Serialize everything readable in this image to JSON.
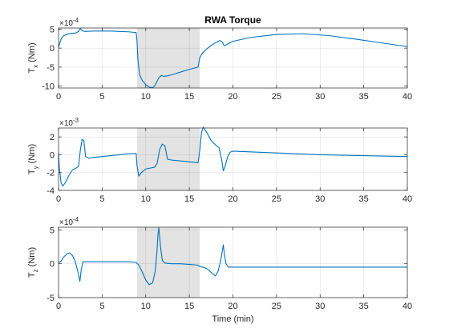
{
  "figure": {
    "background": "#ffffff",
    "line_color": "#0072bd",
    "shade_color": "#e3e3e3"
  },
  "chart_data": [
    {
      "type": "line",
      "title": "RWA Torque",
      "xlabel": "",
      "ylabel": "T",
      "ylabel_sub": "x",
      "ylabel_unit": " (Nm)",
      "multiplier": "×10",
      "exponent": "-4",
      "xlim": [
        0,
        40
      ],
      "ylim": [
        -10.5,
        5.3
      ],
      "xticks": [
        0,
        5,
        10,
        15,
        20,
        25,
        30,
        35,
        40
      ],
      "yticks": [
        -10,
        -5,
        0,
        5
      ],
      "grid": true,
      "shaded_region": [
        9,
        16.2
      ],
      "series": [
        {
          "x": [
            0,
            0.3,
            0.6,
            1.0,
            1.5,
            2.0,
            2.3,
            2.5,
            2.7,
            3.0,
            4.0,
            5.0,
            6.0,
            7.0,
            8.0,
            8.9,
            9.0,
            9.1,
            9.3,
            9.6,
            10.0,
            10.4,
            10.8,
            11.0,
            11.2,
            11.5,
            11.8,
            12.0,
            12.5,
            13.0,
            14.0,
            15.0,
            16.0,
            16.2,
            16.5,
            17.0,
            17.5,
            18.0,
            18.5,
            18.8,
            19.0,
            19.5,
            20.0,
            22.0,
            25.0,
            28.0,
            31.0,
            34.0,
            37.0,
            40.0
          ],
          "y": [
            0.2,
            2.5,
            3.3,
            3.7,
            3.9,
            4.0,
            4.4,
            5.2,
            4.6,
            4.4,
            4.5,
            4.5,
            4.5,
            4.4,
            4.3,
            4.1,
            2.0,
            -3.0,
            -7.0,
            -8.5,
            -9.6,
            -10.3,
            -10.4,
            -10.0,
            -9.2,
            -7.8,
            -7.2,
            -7.4,
            -7.3,
            -7.0,
            -6.3,
            -5.6,
            -5.0,
            -2.5,
            -1.3,
            -0.2,
            0.7,
            1.4,
            2.0,
            1.6,
            0.6,
            1.2,
            1.8,
            2.8,
            3.6,
            3.8,
            3.3,
            2.4,
            1.4,
            0.4
          ]
        }
      ]
    },
    {
      "type": "line",
      "title": "",
      "xlabel": "",
      "ylabel": "T",
      "ylabel_sub": "y",
      "ylabel_unit": " (Nm)",
      "multiplier": "×10",
      "exponent": "-3",
      "xlim": [
        0,
        40
      ],
      "ylim": [
        -4,
        3
      ],
      "xticks": [
        0,
        5,
        10,
        15,
        20,
        25,
        30,
        35,
        40
      ],
      "yticks": [
        -4,
        -2,
        0,
        2
      ],
      "grid": true,
      "shaded_region": [
        9,
        16.2
      ],
      "series": [
        {
          "x": [
            0,
            0.1,
            0.3,
            0.5,
            0.8,
            1.2,
            1.6,
            2.0,
            2.3,
            2.5,
            2.7,
            2.9,
            3.1,
            3.5,
            4.0,
            5.0,
            6.0,
            7.0,
            8.0,
            8.9,
            9.0,
            9.2,
            9.5,
            10.0,
            10.5,
            11.0,
            11.3,
            11.6,
            11.9,
            12.2,
            12.5,
            13.0,
            14.0,
            15.0,
            16.0,
            16.2,
            16.4,
            16.6,
            17.0,
            17.5,
            18.0,
            18.4,
            18.7,
            18.9,
            19.1,
            19.4,
            19.7,
            20.0,
            25.0,
            30.0,
            35.0,
            40.0
          ],
          "y": [
            0.2,
            -1.5,
            -3.2,
            -3.5,
            -3.1,
            -2.3,
            -1.7,
            -1.5,
            -1.3,
            0.5,
            1.7,
            1.6,
            -0.2,
            -0.4,
            -0.3,
            -0.2,
            -0.1,
            0.0,
            0.1,
            0.15,
            -1.2,
            -2.4,
            -2.0,
            -1.6,
            -1.5,
            -1.4,
            -1.0,
            0.6,
            1.2,
            1.0,
            -0.5,
            -0.6,
            -0.7,
            -0.8,
            -0.9,
            0.5,
            2.5,
            3.1,
            2.5,
            1.6,
            1.1,
            0.8,
            -0.5,
            -1.8,
            -1.3,
            -0.2,
            0.3,
            0.4,
            0.2,
            0.0,
            -0.1,
            -0.2
          ]
        }
      ]
    },
    {
      "type": "line",
      "title": "",
      "xlabel": "Time (min)",
      "ylabel": "T",
      "ylabel_sub": "z",
      "ylabel_unit": " (Nm)",
      "multiplier": "×10",
      "exponent": "-4",
      "xlim": [
        0,
        40
      ],
      "ylim": [
        -5,
        5.4
      ],
      "xticks": [
        0,
        5,
        10,
        15,
        20,
        25,
        30,
        35,
        40
      ],
      "yticks": [
        -5,
        0,
        5
      ],
      "grid": true,
      "shaded_region": [
        9,
        16.2
      ],
      "series": [
        {
          "x": [
            0,
            0.3,
            0.6,
            1.0,
            1.3,
            1.6,
            1.9,
            2.1,
            2.3,
            2.45,
            2.6,
            2.8,
            3.0,
            4.0,
            6.0,
            8.0,
            8.9,
            9.2,
            9.6,
            10.0,
            10.4,
            10.8,
            11.1,
            11.3,
            11.4,
            11.5,
            11.7,
            11.9,
            12.2,
            13.0,
            14.0,
            15.0,
            16.0,
            16.2,
            16.8,
            17.2,
            17.6,
            18.0,
            18.3,
            18.6,
            18.8,
            18.9,
            19.0,
            19.2,
            19.5,
            20.0,
            25.0,
            30.0,
            35.0,
            40.0
          ],
          "y": [
            0.1,
            0.4,
            1.0,
            1.5,
            1.6,
            1.2,
            0.4,
            -0.6,
            -1.6,
            -2.6,
            -0.9,
            0.3,
            0.3,
            0.3,
            0.3,
            0.3,
            0.2,
            -0.2,
            -1.2,
            -2.4,
            -3.1,
            -2.8,
            -1.0,
            2.0,
            4.3,
            5.3,
            2.5,
            0.5,
            0.1,
            0.0,
            0.0,
            -0.1,
            -0.2,
            -0.4,
            -0.6,
            -0.9,
            -1.4,
            -1.8,
            -1.1,
            0.5,
            2.0,
            2.8,
            1.6,
            0.0,
            -0.5,
            -0.5,
            -0.5,
            -0.5,
            -0.5,
            -0.5
          ]
        }
      ]
    }
  ]
}
